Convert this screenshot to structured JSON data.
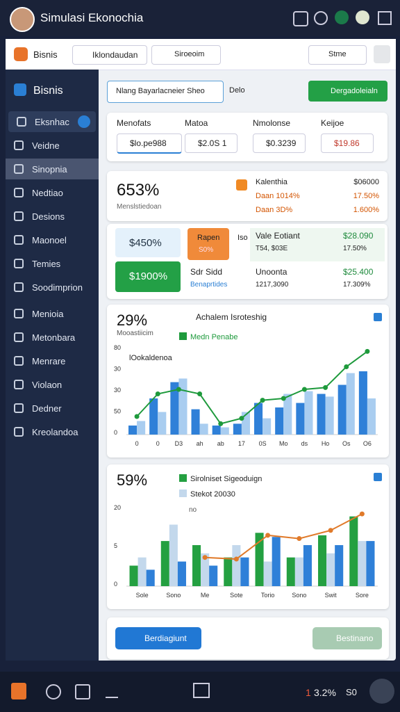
{
  "header": {
    "title": "Simulasi Ekonochia"
  },
  "toolbar": {
    "brand": "Bisnis",
    "search": "Iklondaudan",
    "search2": "Siroeoim",
    "select": "Stme"
  },
  "sidebar": {
    "title": "Bisnis",
    "items": [
      "Eksnhac",
      "Veidne",
      "Sinopnia",
      "Nedtiao",
      "Desions",
      "Maonoel",
      "Temies",
      "Soodimprion",
      "Menioia",
      "Metonbara",
      "Menrare",
      "Violaon",
      "Dedner",
      "Kreolandoa"
    ]
  },
  "tabs": {
    "tab": "Nlang Bayarlacneier Sheo",
    "tab2": "Delo",
    "button": "Dergadoleialn"
  },
  "fields": {
    "labels": [
      "Menofats",
      "Matoa",
      "Nmolonse",
      "Keijoe"
    ],
    "values": [
      "$lo.pe988",
      "$2.0S 1",
      "$0.3239",
      "$19.86"
    ]
  },
  "summary": {
    "big": "653%",
    "caption": "Menslstiedoan",
    "rows": [
      [
        "Kalenthia",
        "$06000"
      ],
      [
        "Daan 1014%",
        "17.50%"
      ],
      [
        "Daan 3D%",
        "1.600%"
      ]
    ]
  },
  "tiles": {
    "a": "$450%",
    "b": "$1900%",
    "c_title": "Rapen",
    "c_sub": "S0%",
    "d": "Iso",
    "rows": [
      [
        "Vale Eotiant",
        "$28.090"
      ],
      [
        "T54, $03E",
        "17.50%"
      ],
      [
        "Sdr Sidd",
        "Unoonta",
        "$25.400"
      ],
      [
        "Benaprtides",
        "1217,3090",
        "17.309%"
      ]
    ]
  },
  "charts": [
    {
      "type": "bar",
      "big": "29%",
      "caption": "Mooastiicim",
      "title": "Achalem Isroteshig",
      "inner_label": "lOokaldenoa",
      "y_labels": [
        "80",
        "30",
        "30",
        "50",
        "0"
      ],
      "categories": [
        "0",
        "0",
        "D3",
        "ah",
        "ab",
        "17",
        "0S",
        "Mo",
        "ds",
        "Ho",
        "Os",
        "O6"
      ],
      "ylim": [
        0,
        100
      ],
      "series": [
        {
          "type": "bar",
          "color": "#2f80d8",
          "values": [
            10,
            40,
            58,
            28,
            10,
            12,
            35,
            30,
            35,
            45,
            55,
            70
          ]
        },
        {
          "type": "bar",
          "color": "#a9cdf0",
          "values": [
            15,
            25,
            62,
            12,
            8,
            25,
            18,
            45,
            48,
            42,
            68,
            40
          ]
        },
        {
          "type": "line",
          "name": "Medn Penabe",
          "color": "#1e9a3c",
          "values": [
            20,
            45,
            50,
            45,
            12,
            18,
            38,
            40,
            50,
            52,
            75,
            92
          ]
        }
      ]
    },
    {
      "type": "bar",
      "big": "59%",
      "caption": "no",
      "y_labels": [
        "20",
        "5",
        "0"
      ],
      "categories": [
        "Sole",
        "Sono",
        "Me",
        "Sote",
        "Torio",
        "Sono",
        "Swit",
        "Sore"
      ],
      "ylim": [
        0,
        100
      ],
      "series": [
        {
          "type": "bar",
          "name": "Sirolniset Sigeoduign",
          "color": "#24a041",
          "values": [
            25,
            55,
            50,
            35,
            65,
            35,
            62,
            85
          ]
        },
        {
          "type": "bar",
          "name": "Stekot 20030",
          "color": "#c3d8ec",
          "values": [
            35,
            75,
            40,
            50,
            30,
            35,
            40,
            55
          ]
        },
        {
          "type": "bar",
          "color": "#2f80d8",
          "values": [
            20,
            30,
            25,
            35,
            60,
            50,
            50,
            55
          ]
        },
        {
          "type": "line",
          "color": "#e07a2a",
          "values": [
            null,
            null,
            35,
            33,
            62,
            58,
            68,
            88
          ]
        }
      ]
    }
  ],
  "actions": {
    "primary": "Berdiagiunt",
    "secondary": "Bestinano"
  },
  "footer": {
    "stat1": "1",
    "stat2": "3.2%",
    "stat3": "S0"
  }
}
